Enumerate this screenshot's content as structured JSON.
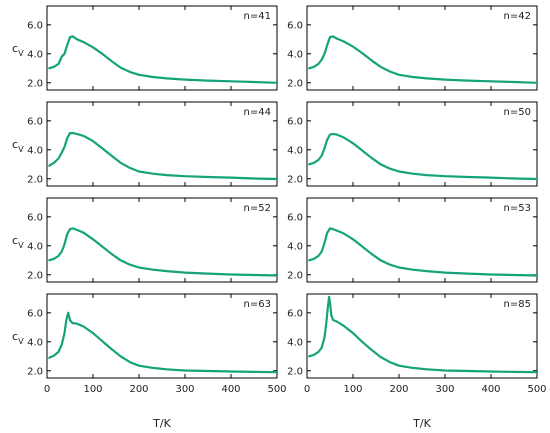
{
  "colors": {
    "curve": "#14a37a",
    "axes": "#000000"
  },
  "chart_data": {
    "type": "line",
    "layout": "grid 4 rows x 2 columns, shared x axis",
    "xlabel": "T/K",
    "ylabel": "c_V",
    "xlim": [
      0,
      500
    ],
    "ylim": [
      1.5,
      7.3
    ],
    "xticks": [
      0,
      100,
      200,
      300,
      400,
      500
    ],
    "yticks": [
      2.0,
      4.0,
      6.0
    ],
    "ytick_labels": [
      "2.0",
      "4.0",
      "6.0"
    ],
    "grid": false,
    "panels": [
      {
        "label": "n=41",
        "x": [
          5,
          15,
          25,
          32,
          38,
          44,
          50,
          56,
          65,
          80,
          100,
          120,
          140,
          160,
          180,
          200,
          230,
          260,
          300,
          350,
          400,
          450,
          500
        ],
        "y": [
          3.0,
          3.1,
          3.3,
          3.8,
          4.0,
          4.6,
          5.15,
          5.2,
          5.0,
          4.8,
          4.45,
          4.0,
          3.5,
          3.05,
          2.75,
          2.55,
          2.4,
          2.3,
          2.22,
          2.15,
          2.1,
          2.05,
          2.0
        ]
      },
      {
        "label": "n=42",
        "x": [
          5,
          15,
          25,
          32,
          38,
          44,
          50,
          56,
          65,
          80,
          100,
          120,
          140,
          160,
          180,
          200,
          230,
          260,
          300,
          350,
          400,
          450,
          500
        ],
        "y": [
          3.0,
          3.1,
          3.3,
          3.6,
          4.0,
          4.6,
          5.15,
          5.2,
          5.05,
          4.85,
          4.5,
          4.05,
          3.55,
          3.1,
          2.78,
          2.55,
          2.4,
          2.3,
          2.22,
          2.15,
          2.1,
          2.05,
          2.0
        ]
      },
      {
        "label": "n=44",
        "x": [
          5,
          15,
          25,
          32,
          38,
          44,
          50,
          56,
          65,
          80,
          100,
          120,
          140,
          160,
          180,
          200,
          230,
          260,
          300,
          350,
          400,
          450,
          500
        ],
        "y": [
          2.9,
          3.1,
          3.4,
          3.8,
          4.2,
          4.8,
          5.15,
          5.15,
          5.1,
          4.95,
          4.6,
          4.1,
          3.6,
          3.1,
          2.75,
          2.5,
          2.35,
          2.25,
          2.18,
          2.12,
          2.08,
          2.02,
          1.98
        ]
      },
      {
        "label": "n=50",
        "x": [
          5,
          15,
          25,
          32,
          38,
          44,
          50,
          56,
          65,
          80,
          100,
          120,
          140,
          160,
          180,
          200,
          230,
          260,
          300,
          350,
          400,
          450,
          500
        ],
        "y": [
          3.0,
          3.1,
          3.3,
          3.6,
          4.1,
          4.7,
          5.05,
          5.1,
          5.05,
          4.85,
          4.45,
          3.95,
          3.45,
          3.0,
          2.7,
          2.5,
          2.35,
          2.25,
          2.18,
          2.12,
          2.08,
          2.02,
          1.98
        ]
      },
      {
        "label": "n=52",
        "x": [
          5,
          15,
          25,
          32,
          38,
          44,
          50,
          56,
          65,
          80,
          100,
          120,
          140,
          160,
          180,
          200,
          230,
          260,
          300,
          350,
          400,
          450,
          500
        ],
        "y": [
          3.0,
          3.1,
          3.3,
          3.6,
          4.1,
          4.8,
          5.15,
          5.2,
          5.1,
          4.9,
          4.45,
          3.95,
          3.45,
          3.0,
          2.7,
          2.5,
          2.35,
          2.25,
          2.15,
          2.08,
          2.02,
          1.98,
          1.95
        ]
      },
      {
        "label": "n=53",
        "x": [
          5,
          15,
          25,
          32,
          38,
          44,
          50,
          56,
          65,
          80,
          100,
          120,
          140,
          160,
          180,
          200,
          230,
          260,
          300,
          350,
          400,
          450,
          500
        ],
        "y": [
          3.0,
          3.1,
          3.3,
          3.6,
          4.2,
          4.9,
          5.2,
          5.15,
          5.05,
          4.85,
          4.45,
          3.95,
          3.45,
          3.0,
          2.7,
          2.5,
          2.35,
          2.25,
          2.15,
          2.08,
          2.02,
          1.98,
          1.95
        ]
      },
      {
        "label": "n=63",
        "x": [
          5,
          15,
          25,
          32,
          38,
          42,
          46,
          50,
          55,
          65,
          80,
          100,
          120,
          140,
          160,
          180,
          200,
          230,
          260,
          300,
          350,
          400,
          450,
          500
        ],
        "y": [
          2.9,
          3.05,
          3.3,
          3.8,
          4.6,
          5.5,
          6.0,
          5.5,
          5.3,
          5.25,
          5.05,
          4.6,
          4.05,
          3.5,
          3.0,
          2.6,
          2.35,
          2.2,
          2.1,
          2.02,
          1.98,
          1.95,
          1.92,
          1.9
        ]
      },
      {
        "label": "n=85",
        "x": [
          5,
          15,
          25,
          32,
          38,
          42,
          45,
          48,
          50,
          53,
          57,
          65,
          80,
          100,
          120,
          140,
          160,
          180,
          200,
          230,
          260,
          300,
          350,
          400,
          450,
          500
        ],
        "y": [
          3.0,
          3.1,
          3.3,
          3.6,
          4.3,
          5.3,
          6.3,
          7.1,
          6.7,
          5.8,
          5.5,
          5.4,
          5.1,
          4.6,
          4.0,
          3.45,
          2.95,
          2.6,
          2.35,
          2.2,
          2.1,
          2.02,
          1.98,
          1.95,
          1.92,
          1.9
        ]
      }
    ]
  }
}
